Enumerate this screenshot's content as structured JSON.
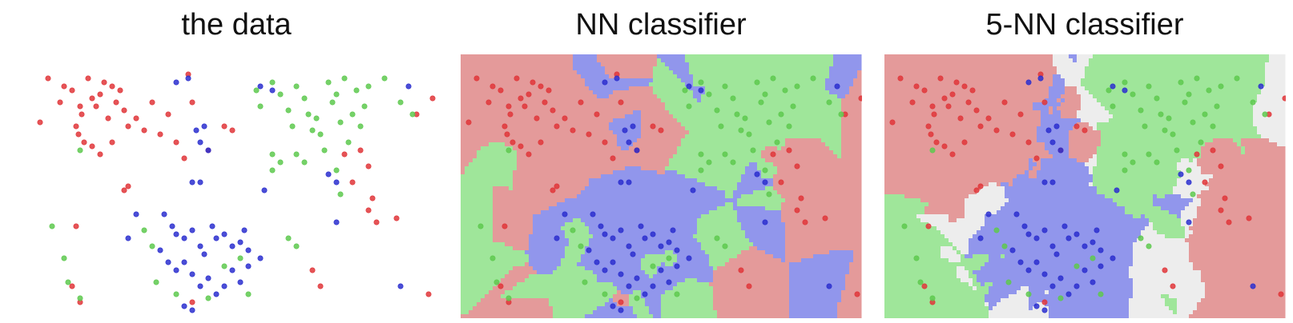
{
  "figure": {
    "panels": [
      {
        "title": "the data"
      },
      {
        "title": "NN classifier"
      },
      {
        "title": "5-NN classifier"
      }
    ]
  },
  "colors": {
    "red_point": "#e0363a",
    "green_point": "#5ec94f",
    "blue_point": "#2b2fcf",
    "red_region": "#e49a9a",
    "green_region": "#9fe69a",
    "blue_region": "#9196ec",
    "undecided_region": "#ededed"
  },
  "chart_data": [
    {
      "type": "scatter",
      "title": "the data",
      "xlim": [
        0,
        500
      ],
      "ylim": [
        0,
        330
      ],
      "series": [
        {
          "color": "red",
          "points": [
            [
              10,
              85
            ],
            [
              20,
              30
            ],
            [
              35,
              60
            ],
            [
              40,
              40
            ],
            [
              50,
              45
            ],
            [
              60,
              65
            ],
            [
              62,
              75
            ],
            [
              55,
              90
            ],
            [
              58,
              100
            ],
            [
              65,
              110
            ],
            [
              70,
              30
            ],
            [
              75,
              55
            ],
            [
              80,
              65
            ],
            [
              85,
              50
            ],
            [
              90,
              35
            ],
            [
              95,
              80
            ],
            [
              100,
              40
            ],
            [
              105,
              60
            ],
            [
              110,
              45
            ],
            [
              115,
              70
            ],
            [
              120,
              90
            ],
            [
              100,
              110
            ],
            [
              130,
              80
            ],
            [
              140,
              95
            ],
            [
              150,
              60
            ],
            [
              160,
              100
            ],
            [
              170,
              75
            ],
            [
              180,
              110
            ],
            [
              190,
              130
            ],
            [
              195,
              25
            ],
            [
              200,
              60
            ],
            [
              220,
              120
            ],
            [
              240,
              90
            ],
            [
              250,
              95
            ],
            [
              120,
              165
            ],
            [
              115,
              170
            ],
            [
              75,
              115
            ],
            [
              85,
              125
            ],
            [
              55,
              215
            ],
            [
              50,
              290
            ],
            [
              60,
              310
            ],
            [
              390,
              125
            ],
            [
              400,
              160
            ],
            [
              410,
              120
            ],
            [
              420,
              140
            ],
            [
              425,
              180
            ],
            [
              480,
              75
            ],
            [
              500,
              55
            ],
            [
              420,
              195
            ],
            [
              430,
              210
            ],
            [
              455,
              205
            ],
            [
              495,
              300
            ],
            [
              350,
              270
            ],
            [
              360,
              290
            ],
            [
              200,
              310
            ]
          ]
        },
        {
          "color": "green",
          "points": [
            [
              60,
              120
            ],
            [
              25,
              215
            ],
            [
              40,
              255
            ],
            [
              45,
              285
            ],
            [
              60,
              305
            ],
            [
              140,
              220
            ],
            [
              150,
              240
            ],
            [
              155,
              285
            ],
            [
              180,
              300
            ],
            [
              220,
              305
            ],
            [
              240,
              265
            ],
            [
              260,
              255
            ],
            [
              270,
              300
            ],
            [
              280,
              45
            ],
            [
              285,
              65
            ],
            [
              300,
              35
            ],
            [
              310,
              50
            ],
            [
              320,
              70
            ],
            [
              325,
              90
            ],
            [
              330,
              40
            ],
            [
              340,
              55
            ],
            [
              345,
              75
            ],
            [
              350,
              95
            ],
            [
              355,
              80
            ],
            [
              360,
              100
            ],
            [
              365,
              120
            ],
            [
              370,
              35
            ],
            [
              375,
              60
            ],
            [
              380,
              50
            ],
            [
              385,
              85
            ],
            [
              390,
              30
            ],
            [
              395,
              110
            ],
            [
              400,
              75
            ],
            [
              405,
              45
            ],
            [
              410,
              90
            ],
            [
              415,
              65
            ],
            [
              420,
              40
            ],
            [
              380,
              145
            ],
            [
              385,
              175
            ],
            [
              330,
              125
            ],
            [
              340,
              135
            ],
            [
              300,
              125
            ],
            [
              310,
              135
            ],
            [
              300,
              145
            ],
            [
              320,
              230
            ],
            [
              330,
              240
            ],
            [
              440,
              30
            ],
            [
              460,
              60
            ],
            [
              475,
              75
            ]
          ]
        },
        {
          "color": "blue",
          "points": [
            [
              180,
              35
            ],
            [
              195,
              30
            ],
            [
              205,
              95
            ],
            [
              215,
              90
            ],
            [
              210,
              110
            ],
            [
              220,
              120
            ],
            [
              200,
              160
            ],
            [
              210,
              160
            ],
            [
              285,
              40
            ],
            [
              300,
              45
            ],
            [
              470,
              40
            ],
            [
              370,
              150
            ],
            [
              380,
              160
            ],
            [
              290,
              170
            ],
            [
              130,
              200
            ],
            [
              120,
              230
            ],
            [
              165,
              200
            ],
            [
              175,
              215
            ],
            [
              180,
              225
            ],
            [
              190,
              230
            ],
            [
              200,
              220
            ],
            [
              210,
              240
            ],
            [
              215,
              250
            ],
            [
              225,
              215
            ],
            [
              230,
              230
            ],
            [
              240,
              225
            ],
            [
              250,
              240
            ],
            [
              260,
              235
            ],
            [
              265,
              220
            ],
            [
              270,
              245
            ],
            [
              160,
              245
            ],
            [
              170,
              260
            ],
            [
              180,
              270
            ],
            [
              190,
              260
            ],
            [
              200,
              275
            ],
            [
              210,
              290
            ],
            [
              220,
              280
            ],
            [
              230,
              300
            ],
            [
              240,
              290
            ],
            [
              250,
              270
            ],
            [
              260,
              285
            ],
            [
              270,
              265
            ],
            [
              285,
              255
            ],
            [
              190,
              315
            ],
            [
              200,
              320
            ],
            [
              380,
              210
            ],
            [
              460,
              290
            ]
          ]
        }
      ]
    },
    {
      "type": "heatmap",
      "title": "NN classifier",
      "xlim": [
        0,
        500
      ],
      "ylim": [
        0,
        330
      ],
      "regions": [
        "red",
        "green",
        "blue"
      ]
    },
    {
      "type": "heatmap",
      "title": "5-NN classifier",
      "xlim": [
        0,
        500
      ],
      "ylim": [
        0,
        330
      ],
      "regions": [
        "red",
        "green",
        "blue",
        "undecided"
      ]
    }
  ]
}
